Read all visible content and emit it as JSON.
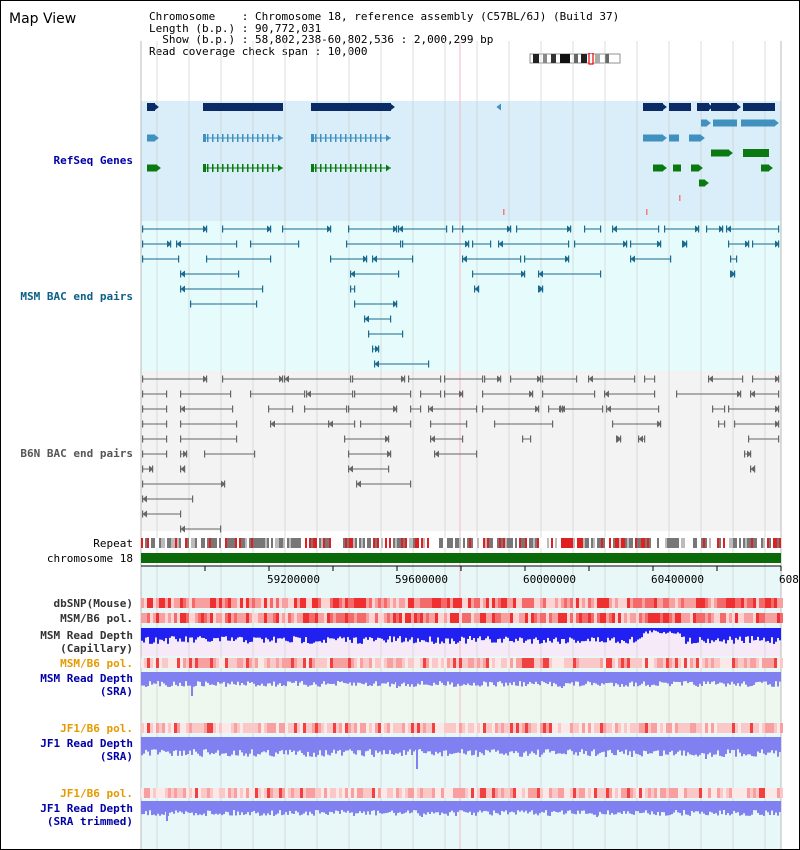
{
  "title": "Map View",
  "info": {
    "line1": "Chromosome    : Chromosome 18, reference assembly (C57BL/6J) (Build 37)",
    "line2": "Length (b.p.) : 90,772,031",
    "line3": "  Show (b.p.) : 58,802,238-60,802,536 : 2,000,299 bp",
    "line4": "Read coverage check span : 10,000"
  },
  "tracks": {
    "refseq": "RefSeq Genes",
    "msm_bac": "MSM BAC end pairs",
    "b6n_bac": "B6N BAC end pairs",
    "repeat": "Repeat",
    "chromosome": "chromosome 18",
    "dbsnp": "dbSNP(Mouse)",
    "msm_b6_pol_1": "MSM/B6 pol.",
    "msm_read_depth_cap": "MSM Read Depth",
    "msm_read_depth_cap_sub": "(Capillary)",
    "msm_b6_pol_2": "MSM/B6 pol.",
    "msm_read_depth_sra": "MSM Read Depth",
    "msm_read_depth_sra_sub": "(SRA)",
    "jf1_b6_pol_1": "JF1/B6 pol.",
    "jf1_read_depth_sra": "JF1 Read Depth",
    "jf1_read_depth_sra_sub": "(SRA)",
    "jf1_b6_pol_2": "JF1/B6 pol.",
    "jf1_read_depth_trim": "JF1 Read Depth",
    "jf1_read_depth_trim_sub": "(SRA trimmed)"
  },
  "axis": {
    "ticks": [
      "59200000",
      "59600000",
      "60000000",
      "60400000",
      "608"
    ]
  },
  "colors": {
    "refseq_bg": "#daeef9",
    "msm_bg": "#e6fbfb",
    "b6n_bg": "#f3f3f3",
    "lower_bg": "#e8f8f8",
    "gene_dark": "#0b2b66",
    "gene_mid": "#4090c0",
    "gene_green": "#0a7a10",
    "msm_line": "#1a6a90",
    "b6n_line": "#666666",
    "chromosome": "#0a6a0a",
    "depth_blue": "#2020f0",
    "depth_light": "#8080f0"
  }
}
